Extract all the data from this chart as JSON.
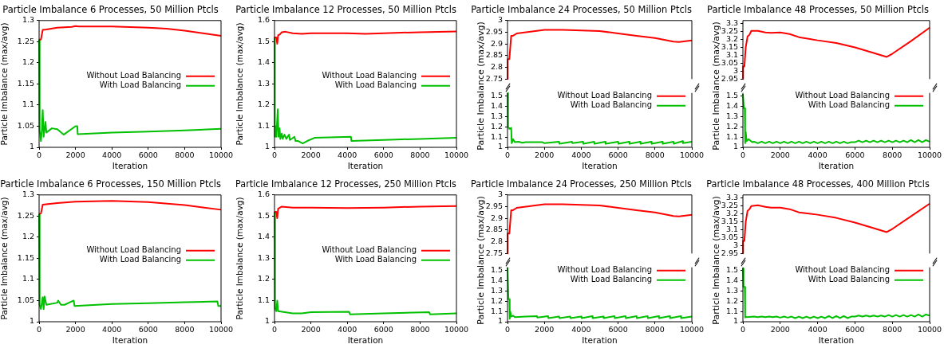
{
  "chart_data": [
    {
      "type": "line",
      "title": "Particle Imbalance 6 Processes, 50 Million Ptcls",
      "xlabel": "Iteration",
      "ylabel": "Particle Imbalance (max/avg)",
      "xlim": [
        0,
        10000
      ],
      "xticks": [
        0,
        2000,
        4000,
        6000,
        8000,
        10000
      ],
      "ylim": [
        1,
        1.3
      ],
      "yticks": [
        1,
        1.05,
        1.1,
        1.15,
        1.2,
        1.25,
        1.3
      ],
      "legend": "right",
      "series": [
        {
          "name": "Without Load Balancing",
          "color": "#ff0000",
          "x": [
            0,
            100,
            200,
            400,
            1000,
            1800,
            2000,
            2200,
            4000,
            6000,
            7000,
            8000,
            9000,
            10000
          ],
          "values": [
            1.255,
            1.255,
            1.278,
            1.279,
            1.283,
            1.285,
            1.287,
            1.286,
            1.286,
            1.283,
            1.281,
            1.276,
            1.27,
            1.264
          ]
        },
        {
          "name": "With Load Balancing",
          "color": "#00c000",
          "x": [
            0,
            30,
            100,
            150,
            200,
            250,
            350,
            400,
            700,
            1000,
            1350,
            2000,
            2100,
            2120,
            4000,
            6000,
            8000,
            10000
          ],
          "values": [
            1.255,
            1.04,
            1.015,
            1.04,
            1.088,
            1.025,
            1.06,
            1.035,
            1.045,
            1.043,
            1.03,
            1.05,
            1.05,
            1.031,
            1.035,
            1.037,
            1.04,
            1.044
          ]
        }
      ]
    },
    {
      "type": "line",
      "title": "Particle Imbalance 12 Processes, 50 Million Ptcls",
      "xlabel": "Iteration",
      "ylabel": "Particle Imbalance (max/avg)",
      "xlim": [
        0,
        10000
      ],
      "xticks": [
        0,
        2000,
        4000,
        6000,
        8000,
        10000
      ],
      "ylim": [
        1,
        1.6
      ],
      "yticks": [
        1,
        1.1,
        1.2,
        1.3,
        1.4,
        1.5,
        1.6
      ],
      "legend": "right",
      "series": [
        {
          "name": "Without Load Balancing",
          "color": "#ff0000",
          "x": [
            0,
            100,
            150,
            200,
            300,
            400,
            600,
            1000,
            1500,
            2000,
            4000,
            5000,
            6000,
            8000,
            10000
          ],
          "values": [
            1.52,
            1.52,
            1.49,
            1.53,
            1.535,
            1.545,
            1.547,
            1.54,
            1.537,
            1.54,
            1.54,
            1.537,
            1.54,
            1.545,
            1.548
          ]
        },
        {
          "name": "With Load Balancing",
          "color": "#00c000",
          "x": [
            0,
            20,
            60,
            100,
            180,
            220,
            280,
            320,
            400,
            450,
            550,
            650,
            800,
            850,
            1100,
            1150,
            1300,
            1550,
            1800,
            2200,
            4200,
            4230,
            6000,
            8000,
            10000
          ],
          "values": [
            1.52,
            1.05,
            1.1,
            1.05,
            1.18,
            1.05,
            1.09,
            1.04,
            1.065,
            1.04,
            1.06,
            1.04,
            1.06,
            1.035,
            1.05,
            1.03,
            1.03,
            1.018,
            1.03,
            1.045,
            1.05,
            1.03,
            1.035,
            1.04,
            1.045
          ]
        }
      ]
    },
    {
      "type": "line",
      "title": "Particle Imbalance 24 Processes, 50 Million Ptcls",
      "xlim": [
        0,
        10000
      ],
      "ylim": [
        2.75,
        3
      ],
      "yticks": [
        2.75,
        2.8,
        2.85,
        2.9,
        2.95,
        3
      ],
      "tick_labels": "y",
      "series": [
        {
          "color": "#ff0000",
          "x": [
            0,
            10,
            100,
            200,
            300,
            500,
            1000,
            1500,
            2000,
            3000,
            4000,
            5000,
            6000,
            7000,
            8000,
            9000,
            9300,
            10000
          ],
          "values": [
            2.75,
            2.835,
            2.835,
            2.935,
            2.935,
            2.945,
            2.95,
            2.955,
            2.96,
            2.96,
            2.958,
            2.955,
            2.945,
            2.935,
            2.925,
            2.91,
            2.908,
            2.915
          ]
        }
      ]
    },
    {
      "type": "line",
      "xlabel": "Iteration",
      "ylabel": "Particle Imbalance (max/avg)",
      "xlim": [
        0,
        10000
      ],
      "xticks": [
        0,
        2000,
        4000,
        6000,
        8000,
        10000
      ],
      "ylim": [
        1,
        1.53
      ],
      "yticks": [
        1,
        1.1,
        1.2,
        1.3,
        1.4,
        1.5
      ],
      "legend": "top right",
      "series": [
        {
          "name": "Without Load Balancing",
          "color": "#ff0000",
          "values": [
            null
          ]
        },
        {
          "name": "With Load Balancing",
          "color": "#00c000",
          "x": [
            0,
            30,
            100,
            200,
            230,
            300,
            400,
            600,
            800,
            1000,
            1900,
            2000,
            2800,
            2820,
            3500,
            3520,
            4100,
            4120,
            4700,
            4720,
            5300,
            5320,
            6000,
            6020,
            6600,
            6620,
            7200,
            7220,
            7800,
            7820,
            8400,
            8420,
            9000,
            9020,
            9500,
            9520,
            10000
          ],
          "values": [
            1.53,
            1.2,
            1.18,
            1.19,
            1.04,
            1.08,
            1.05,
            1.055,
            1.045,
            1.05,
            1.05,
            1.04,
            1.055,
            1.035,
            1.055,
            1.04,
            1.055,
            1.035,
            1.055,
            1.035,
            1.055,
            1.035,
            1.055,
            1.035,
            1.055,
            1.035,
            1.055,
            1.035,
            1.055,
            1.035,
            1.055,
            1.035,
            1.055,
            1.035,
            1.06,
            1.04,
            1.055
          ]
        }
      ]
    },
    {
      "type": "line",
      "title": "Particle Imbalance 48 Processes, 50 Million Ptcls",
      "xlim": [
        0,
        10000
      ],
      "ylim": [
        2.95,
        3.32
      ],
      "yticks": [
        2.95,
        3,
        3.05,
        3.1,
        3.15,
        3.2,
        3.25,
        3.3
      ],
      "tick_labels": "y",
      "series": [
        {
          "color": "#ff0000",
          "x": [
            0,
            10,
            80,
            150,
            250,
            350,
            450,
            800,
            1200,
            1500,
            2000,
            2500,
            3000,
            4000,
            5000,
            6000,
            7000,
            7700,
            8000,
            9000,
            10000
          ],
          "values": [
            2.95,
            3.03,
            3.03,
            3.15,
            3.22,
            3.23,
            3.255,
            3.255,
            3.245,
            3.242,
            3.245,
            3.235,
            3.215,
            3.195,
            3.178,
            3.15,
            3.115,
            3.09,
            3.11,
            3.19,
            3.275
          ]
        }
      ]
    },
    {
      "type": "line",
      "xlabel": "Iteration",
      "ylabel": "Particle Imbalance (max/avg)",
      "xlim": [
        0,
        10000
      ],
      "xticks": [
        0,
        2000,
        4000,
        6000,
        8000,
        10000
      ],
      "ylim": [
        1,
        1.53
      ],
      "yticks": [
        1,
        1.1,
        1.2,
        1.3,
        1.4,
        1.5
      ],
      "legend": "top right",
      "series": [
        {
          "name": "Without Load Balancing",
          "color": "#ff0000",
          "values": [
            null
          ]
        },
        {
          "name": "With Load Balancing",
          "color": "#00c000",
          "x": [
            0,
            50,
            100,
            120,
            150,
            200,
            300,
            500,
            600,
            800,
            1000,
            1200,
            1400,
            1600,
            1800,
            2000,
            2200,
            2400,
            2600,
            2800,
            3000,
            3200,
            3400,
            3600,
            3800,
            4000,
            4200,
            4400,
            4600,
            4800,
            5000,
            5200,
            5400,
            5600,
            5800,
            6000,
            6200,
            6400,
            6600,
            6800,
            7000,
            7200,
            7400,
            7600,
            7800,
            8000,
            8200,
            8400,
            8600,
            8800,
            9000,
            9200,
            9400,
            9600,
            9800,
            10000
          ],
          "values": [
            1.52,
            1.38,
            1.38,
            1.04,
            1.15,
            1.06,
            1.08,
            1.05,
            1.055,
            1.04,
            1.055,
            1.04,
            1.055,
            1.04,
            1.055,
            1.04,
            1.055,
            1.04,
            1.055,
            1.04,
            1.055,
            1.04,
            1.055,
            1.04,
            1.055,
            1.04,
            1.055,
            1.04,
            1.055,
            1.04,
            1.055,
            1.04,
            1.055,
            1.04,
            1.05,
            1.05,
            1.065,
            1.05,
            1.065,
            1.05,
            1.065,
            1.05,
            1.065,
            1.05,
            1.065,
            1.05,
            1.065,
            1.05,
            1.065,
            1.05,
            1.07,
            1.05,
            1.07,
            1.05,
            1.07,
            1.055
          ]
        }
      ]
    },
    {
      "type": "line",
      "title": "Particle Imbalance 6 Processes, 150 Million Ptcls",
      "xlabel": "Iteration",
      "ylabel": "Particle Imbalance (max/avg)",
      "xlim": [
        0,
        10000
      ],
      "xticks": [
        0,
        2000,
        4000,
        6000,
        8000,
        10000
      ],
      "ylim": [
        1,
        1.3
      ],
      "yticks": [
        1,
        1.05,
        1.1,
        1.15,
        1.2,
        1.25,
        1.3
      ],
      "legend": "right",
      "series": [
        {
          "name": "Without Load Balancing",
          "color": "#ff0000",
          "x": [
            0,
            100,
            200,
            1000,
            2000,
            4000,
            6000,
            8000,
            10000
          ],
          "values": [
            1.255,
            1.256,
            1.277,
            1.281,
            1.284,
            1.286,
            1.283,
            1.276,
            1.265
          ]
        },
        {
          "name": "With Load Balancing",
          "color": "#00c000",
          "x": [
            0,
            30,
            100,
            200,
            250,
            300,
            400,
            1000,
            1050,
            1200,
            1400,
            1900,
            1950,
            4000,
            6000,
            8000,
            9800,
            9850,
            10000
          ],
          "values": [
            1.255,
            1.04,
            1.03,
            1.058,
            1.03,
            1.06,
            1.04,
            1.045,
            1.05,
            1.04,
            1.04,
            1.05,
            1.037,
            1.042,
            1.044,
            1.046,
            1.048,
            1.037,
            1.037
          ]
        }
      ]
    },
    {
      "type": "line",
      "title": "Particle Imbalance 12 Processes, 250 Million Ptcls",
      "xlabel": "Iteration",
      "ylabel": "Particle Imbalance (max/avg)",
      "xlim": [
        0,
        10000
      ],
      "xticks": [
        0,
        2000,
        4000,
        6000,
        8000,
        10000
      ],
      "ylim": [
        1,
        1.6
      ],
      "yticks": [
        1,
        1.1,
        1.2,
        1.3,
        1.4,
        1.5,
        1.6
      ],
      "legend": "right",
      "series": [
        {
          "name": "Without Load Balancing",
          "color": "#ff0000",
          "x": [
            0,
            100,
            150,
            200,
            400,
            1000,
            2000,
            4000,
            6000,
            8000,
            10000
          ],
          "values": [
            1.52,
            1.52,
            1.49,
            1.535,
            1.545,
            1.54,
            1.54,
            1.538,
            1.54,
            1.545,
            1.547
          ]
        },
        {
          "name": "With Load Balancing",
          "color": "#00c000",
          "x": [
            0,
            30,
            100,
            150,
            200,
            1000,
            1500,
            2000,
            4100,
            4150,
            6000,
            8500,
            8550,
            10000
          ],
          "values": [
            1.52,
            1.06,
            1.05,
            1.1,
            1.05,
            1.04,
            1.04,
            1.045,
            1.047,
            1.035,
            1.04,
            1.045,
            1.035,
            1.04
          ]
        }
      ]
    },
    {
      "type": "line",
      "title": "Particle Imbalance 24 Processes, 250 Million Ptcls",
      "xlim": [
        0,
        10000
      ],
      "ylim": [
        2.75,
        3
      ],
      "yticks": [
        2.75,
        2.8,
        2.85,
        2.9,
        2.95,
        3
      ],
      "tick_labels": "y",
      "series": [
        {
          "color": "#ff0000",
          "x": [
            0,
            10,
            100,
            200,
            300,
            500,
            1000,
            1500,
            2000,
            3000,
            4000,
            5000,
            6000,
            7000,
            8000,
            9000,
            9300,
            10000
          ],
          "values": [
            2.75,
            2.835,
            2.835,
            2.935,
            2.935,
            2.945,
            2.95,
            2.955,
            2.96,
            2.96,
            2.958,
            2.955,
            2.945,
            2.935,
            2.925,
            2.91,
            2.908,
            2.915
          ]
        }
      ]
    },
    {
      "type": "line",
      "xlabel": "Iteration",
      "ylabel": "Particle Imbalance (max/avg)",
      "xlim": [
        0,
        10000
      ],
      "xticks": [
        0,
        2000,
        4000,
        6000,
        8000,
        10000
      ],
      "ylim": [
        1,
        1.53
      ],
      "yticks": [
        1,
        1.1,
        1.2,
        1.3,
        1.4,
        1.5
      ],
      "legend": "top right",
      "series": [
        {
          "name": "Without Load Balancing",
          "color": "#ff0000",
          "values": [
            null
          ]
        },
        {
          "name": "With Load Balancing",
          "color": "#00c000",
          "x": [
            0,
            50,
            100,
            120,
            150,
            200,
            300,
            400,
            1000,
            1600,
            1620,
            2200,
            2220,
            2800,
            2820,
            3400,
            3420,
            4000,
            4020,
            4600,
            4620,
            5200,
            5220,
            5800,
            5820,
            6400,
            6420,
            7000,
            7020,
            7600,
            7620,
            8200,
            8220,
            8800,
            8820,
            9400,
            9420,
            10000
          ],
          "values": [
            1.53,
            1.22,
            1.22,
            1.03,
            1.1,
            1.05,
            1.06,
            1.045,
            1.05,
            1.055,
            1.04,
            1.055,
            1.035,
            1.05,
            1.035,
            1.05,
            1.035,
            1.05,
            1.035,
            1.055,
            1.035,
            1.05,
            1.035,
            1.055,
            1.035,
            1.055,
            1.035,
            1.055,
            1.035,
            1.055,
            1.035,
            1.055,
            1.035,
            1.055,
            1.035,
            1.055,
            1.035,
            1.05
          ]
        }
      ]
    },
    {
      "type": "line",
      "title": "Particle Imbalance 48 Processes, 400 Million Ptcls",
      "xlim": [
        0,
        10000
      ],
      "ylim": [
        2.95,
        3.32
      ],
      "yticks": [
        2.95,
        3,
        3.05,
        3.1,
        3.15,
        3.2,
        3.25,
        3.3
      ],
      "tick_labels": "y",
      "series": [
        {
          "color": "#ff0000",
          "x": [
            0,
            10,
            80,
            150,
            250,
            350,
            450,
            800,
            1200,
            1500,
            2000,
            2500,
            3000,
            4000,
            5000,
            6000,
            7000,
            7700,
            8000,
            9000,
            10000
          ],
          "values": [
            2.95,
            3.03,
            3.03,
            3.15,
            3.22,
            3.23,
            3.25,
            3.255,
            3.245,
            3.24,
            3.24,
            3.23,
            3.21,
            3.195,
            3.175,
            3.145,
            3.11,
            3.085,
            3.105,
            3.185,
            3.265
          ]
        }
      ]
    },
    {
      "type": "line",
      "xlabel": "Iteration",
      "ylabel": "Particle Imbalance (max/avg)",
      "xlim": [
        0,
        10000
      ],
      "xticks": [
        0,
        2000,
        4000,
        6000,
        8000,
        10000
      ],
      "ylim": [
        1,
        1.53
      ],
      "yticks": [
        1,
        1.1,
        1.2,
        1.3,
        1.4,
        1.5
      ],
      "legend": "top right",
      "series": [
        {
          "name": "Without Load Balancing",
          "color": "#ff0000",
          "values": [
            null
          ]
        },
        {
          "name": "With Load Balancing",
          "color": "#00c000",
          "x": [
            0,
            30,
            100,
            120,
            150,
            200,
            600,
            800,
            1000,
            1200,
            1400,
            1600,
            1800,
            2000,
            2200,
            2400,
            2600,
            2800,
            3000,
            3200,
            3400,
            3600,
            3800,
            4000,
            4200,
            4400,
            4600,
            4800,
            5000,
            5200,
            5400,
            5600,
            5800,
            6000,
            6200,
            6400,
            6600,
            6800,
            7000,
            7200,
            7400,
            7600,
            7800,
            8000,
            8200,
            8400,
            8600,
            8800,
            9000,
            9200,
            9400,
            9600,
            9800,
            10000
          ],
          "values": [
            1.52,
            1.34,
            1.34,
            1.04,
            1.05,
            1.045,
            1.05,
            1.045,
            1.05,
            1.045,
            1.05,
            1.045,
            1.05,
            1.04,
            1.05,
            1.04,
            1.05,
            1.035,
            1.05,
            1.035,
            1.05,
            1.035,
            1.05,
            1.035,
            1.05,
            1.035,
            1.055,
            1.035,
            1.055,
            1.035,
            1.055,
            1.035,
            1.05,
            1.05,
            1.06,
            1.05,
            1.06,
            1.05,
            1.06,
            1.05,
            1.06,
            1.05,
            1.065,
            1.05,
            1.065,
            1.05,
            1.065,
            1.05,
            1.065,
            1.05,
            1.07,
            1.05,
            1.07,
            1.06
          ]
        }
      ]
    }
  ]
}
